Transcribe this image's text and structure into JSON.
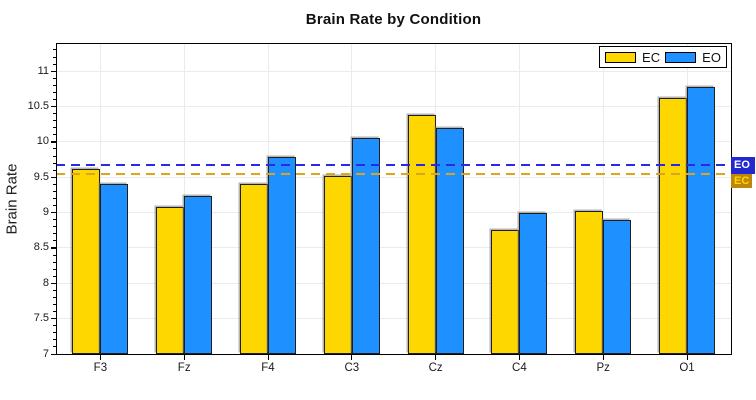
{
  "chart_data": {
    "type": "bar",
    "title": "Brain Rate by Condition",
    "ylabel": "Brain Rate",
    "xlabel": "",
    "categories": [
      "F3",
      "Fz",
      "F4",
      "C3",
      "Cz",
      "C4",
      "Pz",
      "O1"
    ],
    "series": [
      {
        "name": "EC",
        "color": "#FFD700",
        "values": [
          9.62,
          9.08,
          9.4,
          9.52,
          10.38,
          8.75,
          9.02,
          10.62
        ],
        "mean": 9.55,
        "mean_line_color": "#DAA520"
      },
      {
        "name": "EO",
        "color": "#1E90FF",
        "values": [
          9.41,
          9.24,
          9.78,
          10.05,
          10.2,
          9.0,
          8.9,
          10.77
        ],
        "mean": 9.67,
        "mean_line_color": "#2A2AE6"
      }
    ],
    "ylim": [
      7,
      11.4
    ],
    "yticks": [
      7,
      7.5,
      8,
      8.5,
      9,
      9.5,
      10,
      10.5,
      11
    ],
    "minor_tick_step": 0.1,
    "grid": true,
    "legend_position": "top-right"
  },
  "legend": {
    "items": [
      {
        "label": "EC",
        "color": "#FFD700"
      },
      {
        "label": "EO",
        "color": "#1E90FF"
      }
    ]
  },
  "mean_tags": [
    {
      "label": "EO",
      "bg": "#2327CF",
      "text": "#FFFFFF"
    },
    {
      "label": "EC",
      "bg": "#BE860B",
      "text": "#FFD700"
    }
  ]
}
